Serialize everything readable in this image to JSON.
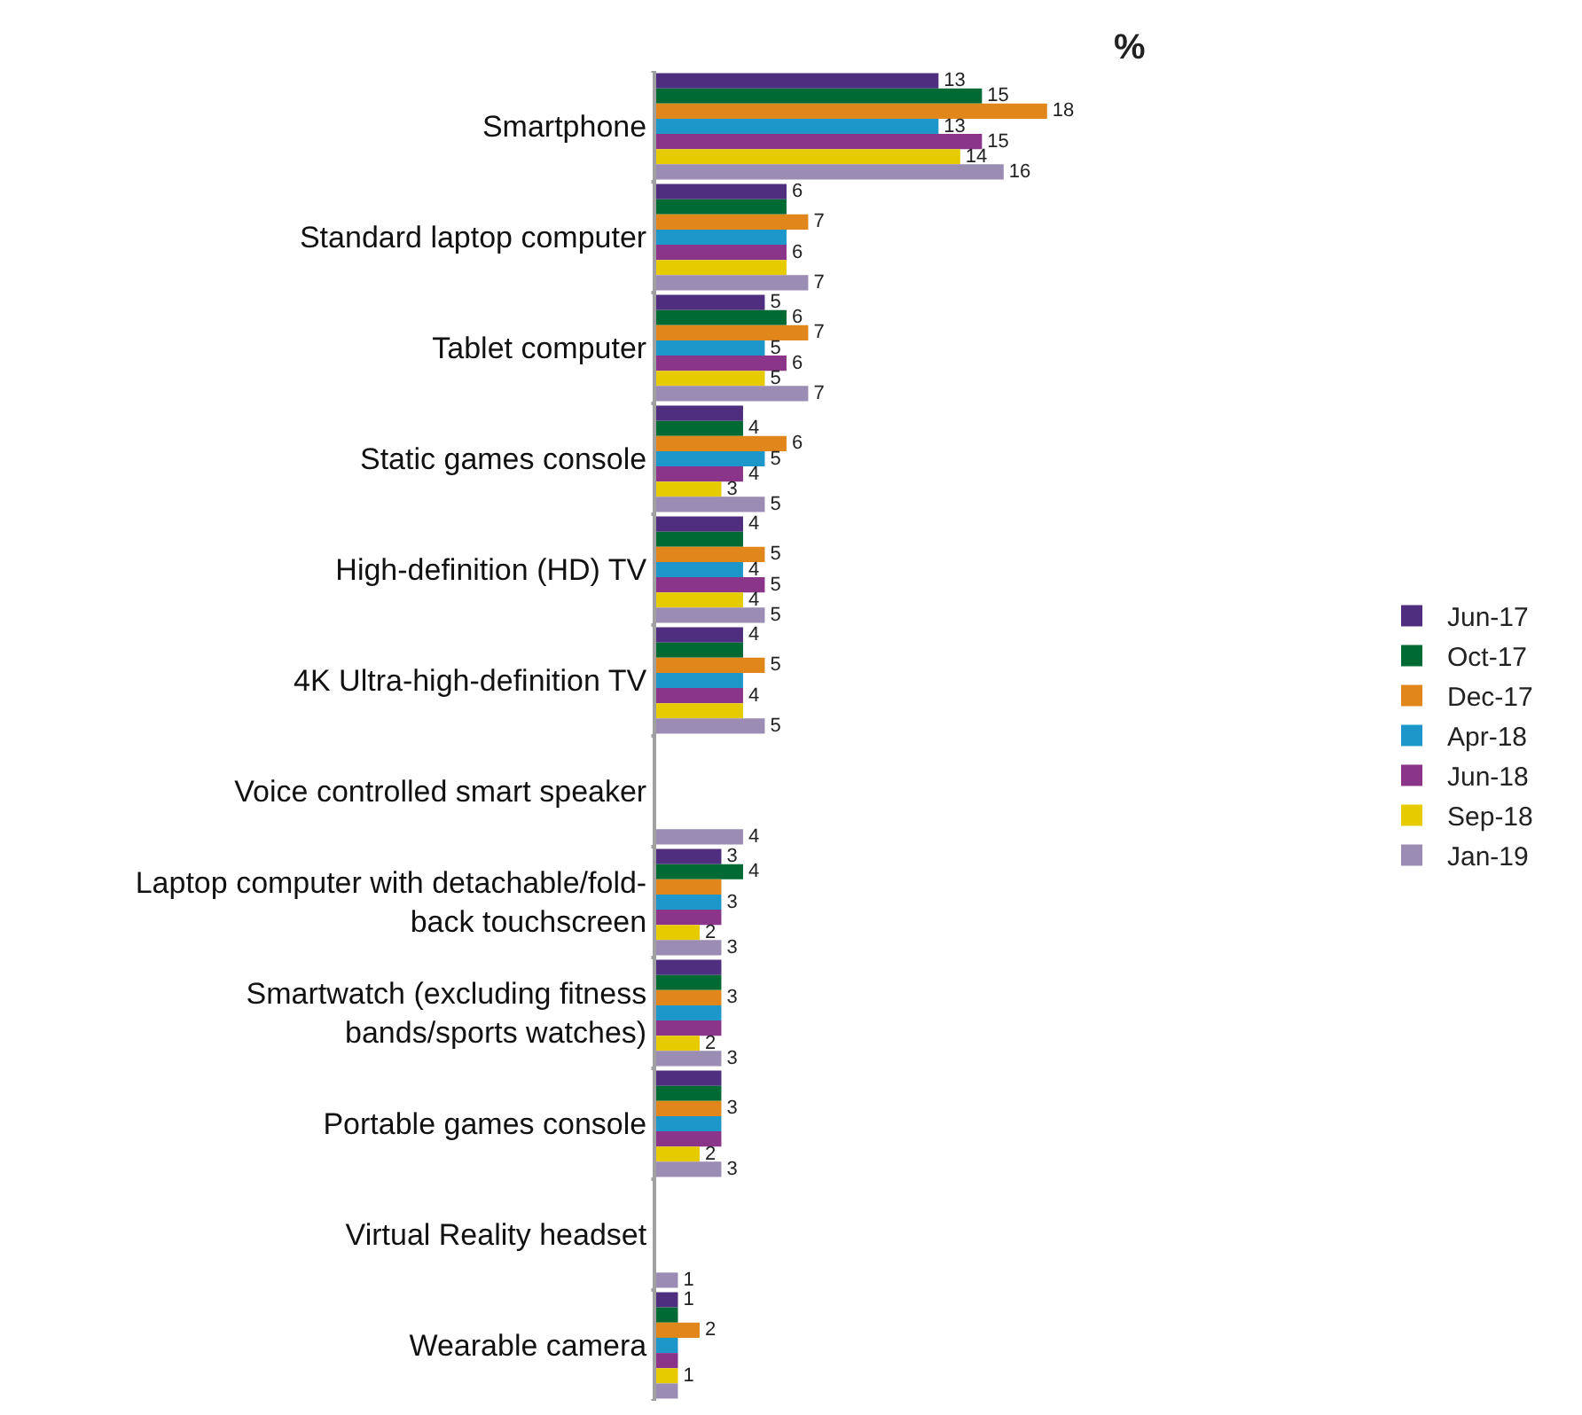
{
  "chart_data": {
    "type": "bar",
    "orientation": "horizontal",
    "title": "%",
    "categories": [
      "Smartphone",
      "Standard laptop computer",
      "Tablet computer",
      "Static games console",
      "High-definition (HD) TV",
      "4K Ultra-high-definition TV",
      "Voice controlled smart speaker",
      "Laptop computer with detachable/fold-\nback touchscreen",
      "Smartwatch (excluding fitness\nbands/sports watches)",
      "Portable games console",
      "Virtual Reality headset",
      "Wearable camera"
    ],
    "series": [
      {
        "name": "Jun-17",
        "color": "#4f2d7f",
        "values": [
          13,
          6,
          5,
          4,
          4,
          4,
          null,
          3,
          3,
          3,
          null,
          1
        ],
        "value_labels": [
          "13",
          "6",
          "5",
          null,
          "4",
          "4",
          null,
          "3",
          null,
          null,
          null,
          "1"
        ]
      },
      {
        "name": "Oct-17",
        "color": "#006a34",
        "values": [
          15,
          6,
          6,
          4,
          4,
          4,
          null,
          4,
          3,
          3,
          null,
          1
        ],
        "value_labels": [
          "15",
          null,
          "6",
          "4",
          null,
          null,
          null,
          "4",
          null,
          null,
          null,
          null
        ]
      },
      {
        "name": "Dec-17",
        "color": "#e0861a",
        "values": [
          18,
          7,
          7,
          6,
          5,
          5,
          null,
          3,
          3,
          3,
          null,
          2
        ],
        "value_labels": [
          "18",
          "7",
          "7",
          "6",
          "5",
          "5",
          null,
          null,
          "3",
          "3",
          null,
          "2"
        ]
      },
      {
        "name": "Apr-18",
        "color": "#1d96c9",
        "values": [
          13,
          6,
          5,
          5,
          4,
          4,
          null,
          3,
          3,
          3,
          null,
          1
        ],
        "value_labels": [
          "13",
          null,
          "5",
          "5",
          "4",
          null,
          null,
          "3",
          null,
          null,
          null,
          null
        ]
      },
      {
        "name": "Jun-18",
        "color": "#8a348a",
        "values": [
          15,
          6,
          6,
          4,
          5,
          4,
          null,
          3,
          3,
          3,
          null,
          1
        ],
        "value_labels": [
          "15",
          "6",
          "6",
          "4",
          "5",
          "4",
          null,
          null,
          null,
          null,
          null,
          null
        ]
      },
      {
        "name": "Sep-18",
        "color": "#e6cb00",
        "values": [
          14,
          6,
          5,
          3,
          4,
          4,
          null,
          2,
          2,
          2,
          null,
          1
        ],
        "value_labels": [
          "14",
          null,
          "5",
          "3",
          "4",
          null,
          null,
          "2",
          "2",
          "2",
          null,
          "1"
        ]
      },
      {
        "name": "Jan-19",
        "color": "#9a8cb2",
        "values": [
          16,
          7,
          7,
          5,
          5,
          5,
          4,
          3,
          3,
          3,
          1,
          1
        ],
        "value_labels": [
          "16",
          "7",
          "7",
          "5",
          "5",
          "5",
          "4",
          "3",
          "3",
          "3",
          "1",
          null
        ]
      }
    ],
    "tick_labels": "y",
    "legend": "right"
  }
}
